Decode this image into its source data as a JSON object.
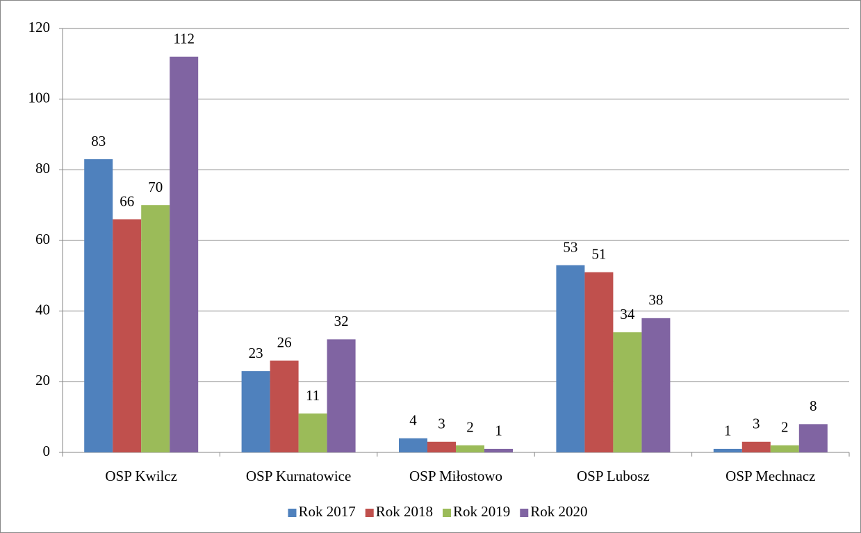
{
  "chart_data": {
    "type": "bar",
    "categories": [
      "OSP Kwilcz",
      "OSP Kurnatowice",
      "OSP Miłostowo",
      "OSP Lubosz",
      "OSP Mechnacz"
    ],
    "series": [
      {
        "name": "Rok 2017",
        "color": "#4f81bd",
        "values": [
          83,
          23,
          4,
          53,
          1
        ]
      },
      {
        "name": "Rok 2018",
        "color": "#c0504d",
        "values": [
          66,
          26,
          3,
          51,
          3
        ]
      },
      {
        "name": "Rok 2019",
        "color": "#9bbb59",
        "values": [
          70,
          11,
          2,
          34,
          2
        ]
      },
      {
        "name": "Rok 2020",
        "color": "#8064a2",
        "values": [
          112,
          32,
          1,
          38,
          8
        ]
      }
    ],
    "ylim": [
      0,
      120
    ],
    "yticks": [
      0,
      20,
      40,
      60,
      80,
      100,
      120
    ],
    "grid": true,
    "legend": "bottom"
  }
}
